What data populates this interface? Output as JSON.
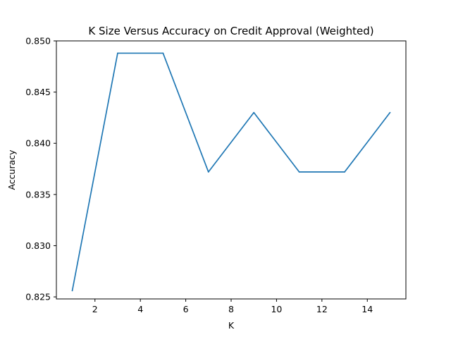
{
  "chart_data": {
    "type": "line",
    "title": "K Size Versus Accuracy on Credit Approval (Weighted)",
    "xlabel": "K",
    "ylabel": "Accuracy",
    "xlim": [
      0.3,
      15.7
    ],
    "ylim": [
      0.8248,
      0.85
    ],
    "grid": false,
    "x_ticks": [
      2,
      4,
      6,
      8,
      10,
      12,
      14
    ],
    "x_tick_labels": [
      "2",
      "4",
      "6",
      "8",
      "10",
      "12",
      "14"
    ],
    "y_ticks": [
      0.825,
      0.83,
      0.835,
      0.84,
      0.845,
      0.85
    ],
    "y_tick_labels": [
      "0.825",
      "0.830",
      "0.835",
      "0.840",
      "0.845",
      "0.850"
    ],
    "series": [
      {
        "name": "Accuracy",
        "color": "#1f77b4",
        "x": [
          1,
          3,
          5,
          7,
          9,
          11,
          13,
          15
        ],
        "values": [
          0.8256,
          0.8488,
          0.8488,
          0.8372,
          0.843,
          0.8372,
          0.8372,
          0.843
        ]
      }
    ]
  }
}
